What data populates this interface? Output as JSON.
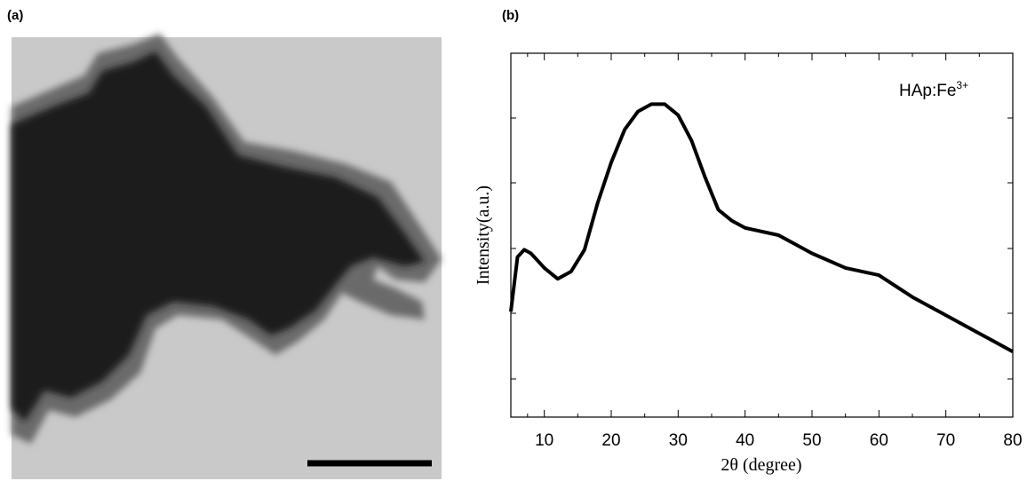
{
  "panel_labels": [
    "(a)",
    "(b)"
  ],
  "chart_data": {
    "type": "line",
    "xlabel": "2θ (degree)",
    "ylabel": "Intensity(a.u.)",
    "annotation": {
      "text": "HAp:Fe",
      "sup": "3+"
    },
    "x": [
      5,
      6,
      7,
      8,
      10,
      12,
      14,
      16,
      18,
      20,
      22,
      24,
      26,
      28,
      30,
      32,
      34,
      36,
      38,
      40,
      45,
      50,
      55,
      60,
      65,
      70,
      75,
      80
    ],
    "values": [
      29,
      44,
      46,
      45,
      41,
      38,
      40,
      46,
      59,
      70,
      79,
      84,
      86,
      86,
      83,
      76,
      66,
      57,
      54,
      52,
      50,
      45,
      41,
      39,
      33,
      28,
      23,
      18
    ],
    "color": "#000000",
    "xlim": [
      5,
      80
    ],
    "xticks": [
      10,
      20,
      30,
      40,
      50,
      60,
      70,
      80
    ],
    "ylim": [
      0,
      100
    ]
  }
}
